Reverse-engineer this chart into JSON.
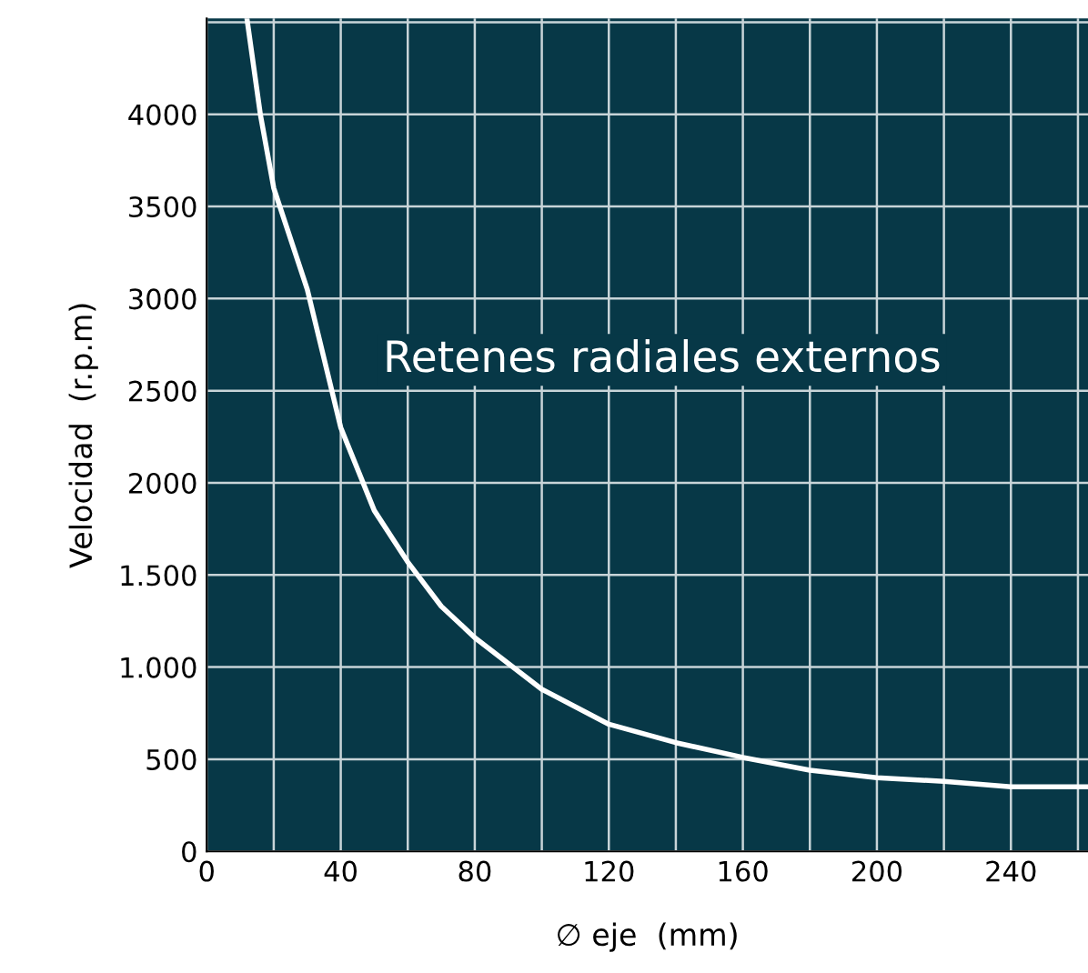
{
  "chart_data": {
    "type": "line",
    "xlabel": "∅ eje  (mm)",
    "ylabel": "Velocidad  (r.p.m)",
    "annotations": [
      "Retenes radiales externos"
    ],
    "series": [
      {
        "color": "#ffffff",
        "x": [
          12,
          16,
          20,
          30,
          40,
          50,
          60,
          70,
          80,
          100,
          120,
          140,
          160,
          180,
          200,
          220,
          240,
          263
        ],
        "values": [
          4520,
          4000,
          3600,
          3050,
          2300,
          1850,
          1570,
          1330,
          1160,
          880,
          690,
          590,
          510,
          440,
          400,
          380,
          350,
          350
        ]
      }
    ],
    "xlim": [
      0,
      263
    ],
    "ylim": [
      0,
      4520
    ],
    "xticks": [
      0,
      {
        "value": 20,
        "label": null
      },
      40,
      {
        "value": 60,
        "label": null
      },
      80,
      {
        "value": 100,
        "label": null
      },
      120,
      {
        "value": 140,
        "label": null
      },
      160,
      {
        "value": 180,
        "label": null
      },
      200,
      {
        "value": 220,
        "label": null
      },
      240,
      {
        "value": 260,
        "label": null
      }
    ],
    "yticks": [
      0,
      500,
      {
        "value": 1000,
        "label": "1.000"
      },
      {
        "value": 1500,
        "label": "1.500"
      },
      2000,
      2500,
      3000,
      3500,
      4000,
      {
        "value": 4500,
        "label": null
      }
    ],
    "grid": true,
    "marker": "none",
    "line_style": "solid",
    "legend": false
  }
}
